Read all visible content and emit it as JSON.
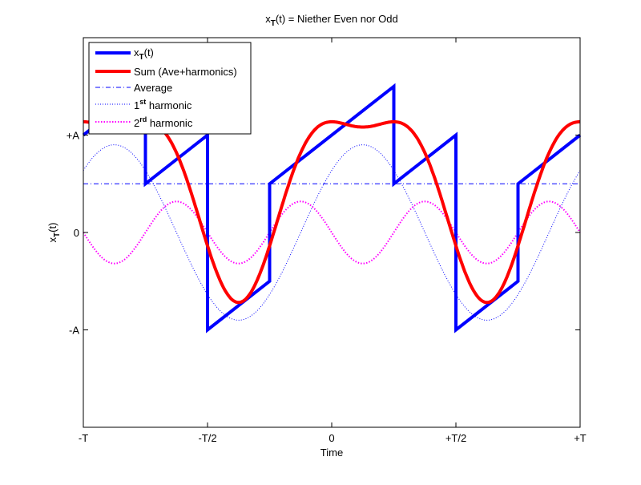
{
  "chart_data": {
    "type": "line",
    "title": {
      "main": "x",
      "sub": "T",
      "rest": "(t) = Niether Even nor Odd"
    },
    "xlabel": "Time",
    "ylabel": {
      "main": "x",
      "sub": "T",
      "rest": "(t)"
    },
    "xlim": [
      -1,
      1
    ],
    "ylim": [
      -2,
      2
    ],
    "x_units": "T",
    "y_units": "A",
    "xticks": [
      {
        "value": -1,
        "label": "-T"
      },
      {
        "value": -0.5,
        "label": "-T/2"
      },
      {
        "value": 0,
        "label": "0"
      },
      {
        "value": 0.5,
        "label": "+T/2"
      },
      {
        "value": 1,
        "label": "+T"
      }
    ],
    "yticks": [
      {
        "value": 1,
        "label": "+A"
      },
      {
        "value": 0,
        "label": "0"
      },
      {
        "value": -1,
        "label": "-A"
      }
    ],
    "grid": false,
    "legend_position": "top-left",
    "series": [
      {
        "name": "xT(t)",
        "legend": {
          "main": "x",
          "sub": "T",
          "rest": "(t)"
        },
        "color": "#0000ff",
        "style": "solid-thick",
        "points": [
          [
            -1,
            1
          ],
          [
            -0.75,
            1.5
          ],
          [
            -0.75,
            0.5
          ],
          [
            -0.5,
            1
          ],
          [
            -0.5,
            -1
          ],
          [
            -0.25,
            -0.5
          ],
          [
            -0.25,
            0.5
          ],
          [
            0.25,
            1.5
          ],
          [
            0.25,
            0.5
          ],
          [
            0.5,
            1
          ],
          [
            0.5,
            -1
          ],
          [
            0.75,
            -0.5
          ],
          [
            0.75,
            0.5
          ],
          [
            1,
            1
          ]
        ]
      },
      {
        "name": "Sum (Ave+harmonics)",
        "legend": {
          "main": "Sum (Ave+harmonics)",
          "sup": "",
          "rest": ""
        },
        "color": "#ff0000",
        "style": "solid-thick",
        "computed": "average + 1st harmonic + 2nd harmonic"
      },
      {
        "name": "Average",
        "legend": {
          "main": "Average",
          "sup": "",
          "rest": ""
        },
        "color": "#0000ff",
        "style": "dash-dot",
        "value": 0.5
      },
      {
        "name": "1st harmonic",
        "legend": {
          "main": "1",
          "sup": "st",
          "rest": " harmonic"
        },
        "color": "#0000ff",
        "style": "dotted",
        "harmonic": 1
      },
      {
        "name": "2rd harmonic",
        "legend": {
          "main": "2",
          "sup": "rd",
          "rest": " harmonic"
        },
        "color": "#ff00ff",
        "style": "dotted-thick",
        "harmonic": 2
      }
    ]
  }
}
